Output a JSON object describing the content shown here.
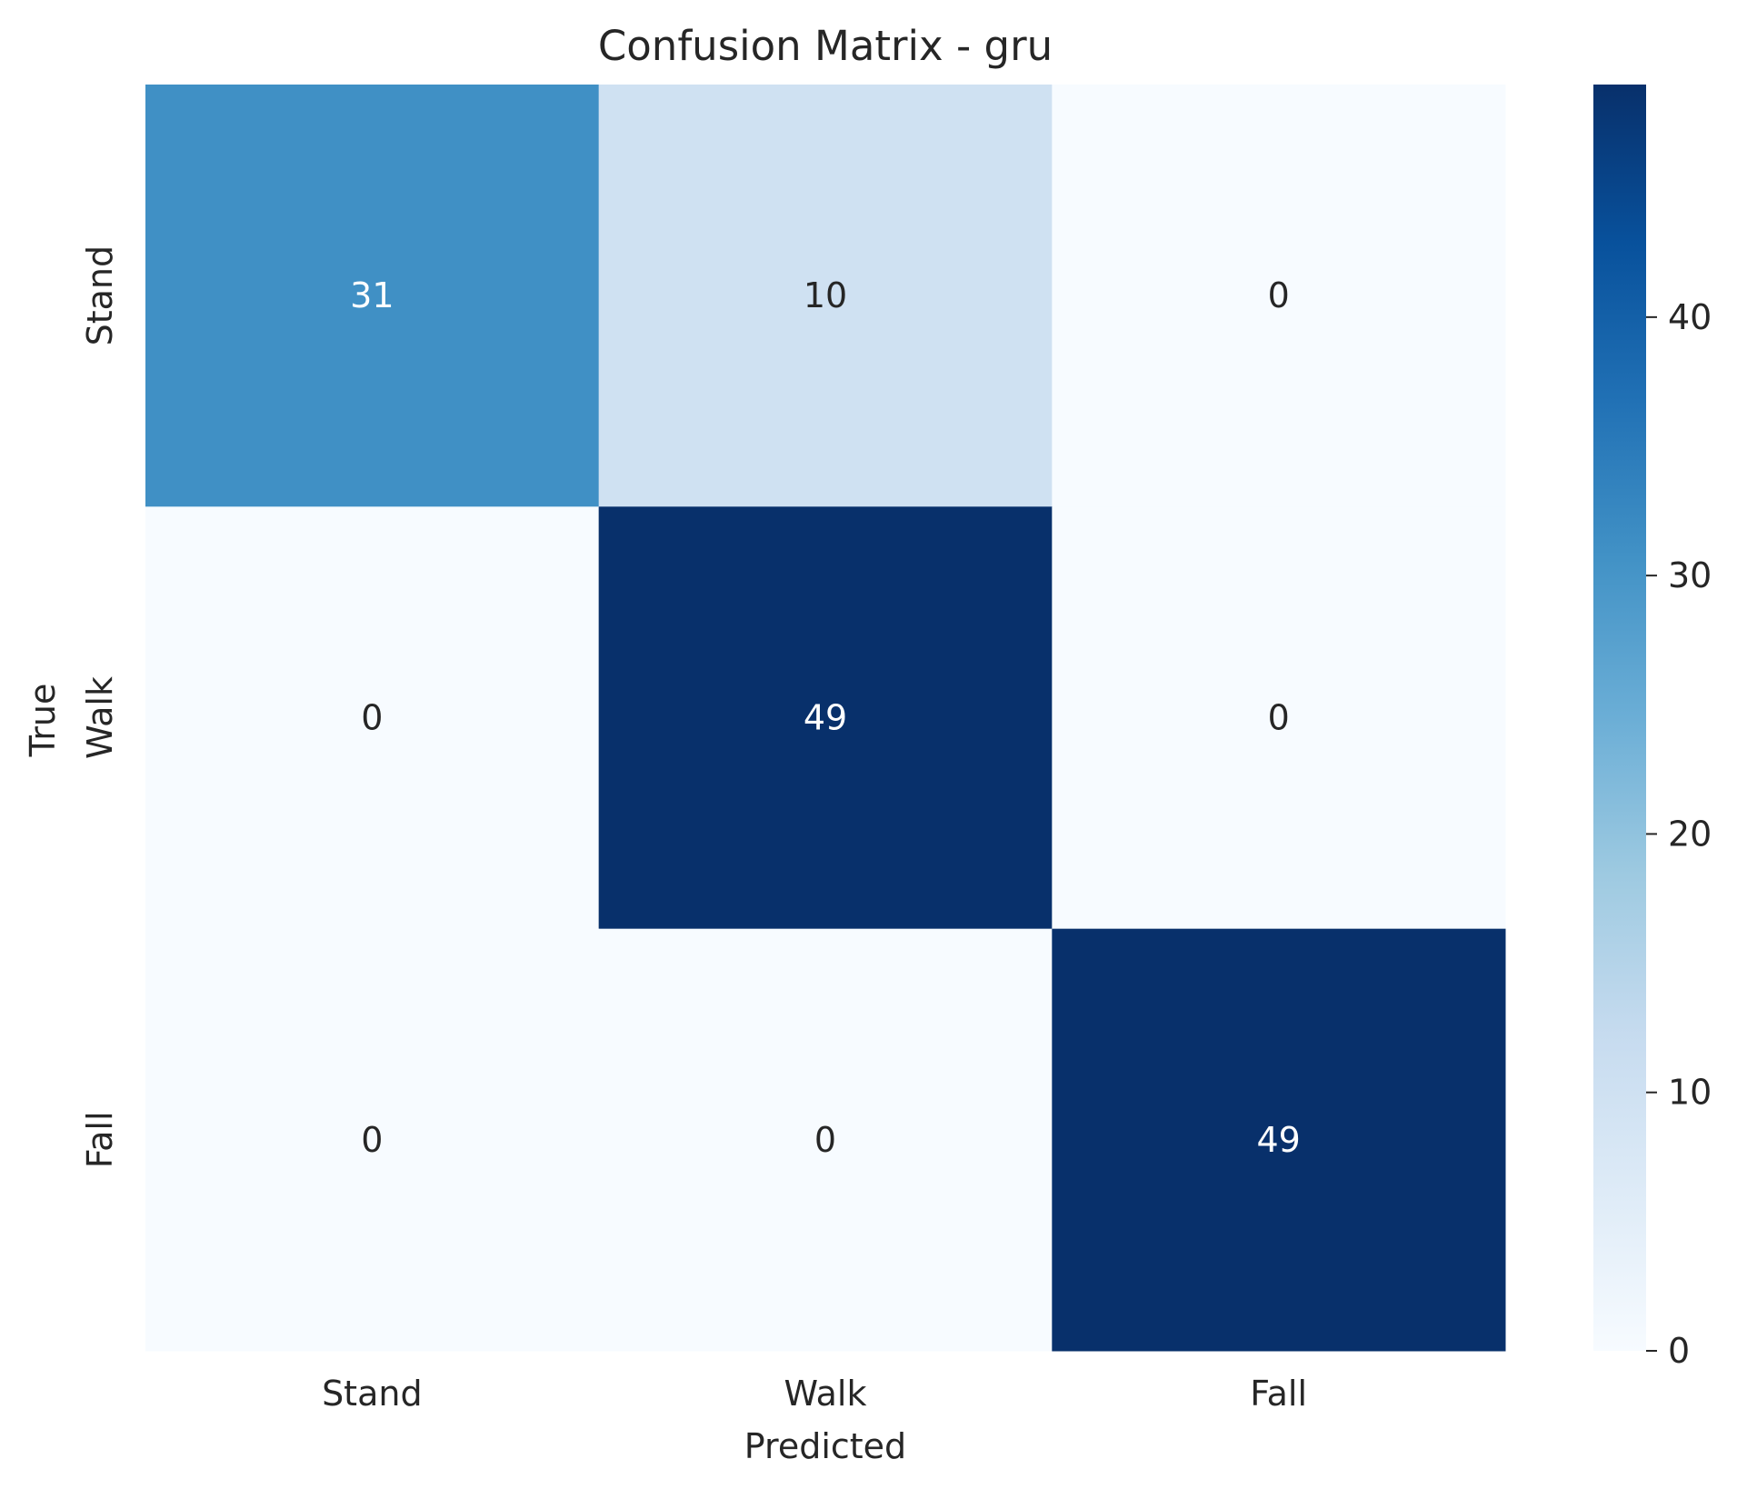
{
  "chart_data": {
    "type": "heatmap",
    "title": "Confusion Matrix - gru",
    "xlabel": "Predicted",
    "ylabel": "True",
    "x_categories": [
      "Stand",
      "Walk",
      "Fall"
    ],
    "y_categories": [
      "Stand",
      "Walk",
      "Fall"
    ],
    "values": [
      [
        31,
        10,
        0
      ],
      [
        0,
        49,
        0
      ],
      [
        0,
        0,
        49
      ]
    ],
    "colormap": "Blues",
    "colorbar": {
      "range": [
        0,
        49
      ],
      "ticks": [
        0,
        10,
        20,
        30,
        40
      ],
      "tick_labels": [
        "0",
        "10",
        "20",
        "30",
        "40"
      ]
    },
    "colors": {
      "low": "#f7fbff",
      "high": "#08306b"
    }
  }
}
